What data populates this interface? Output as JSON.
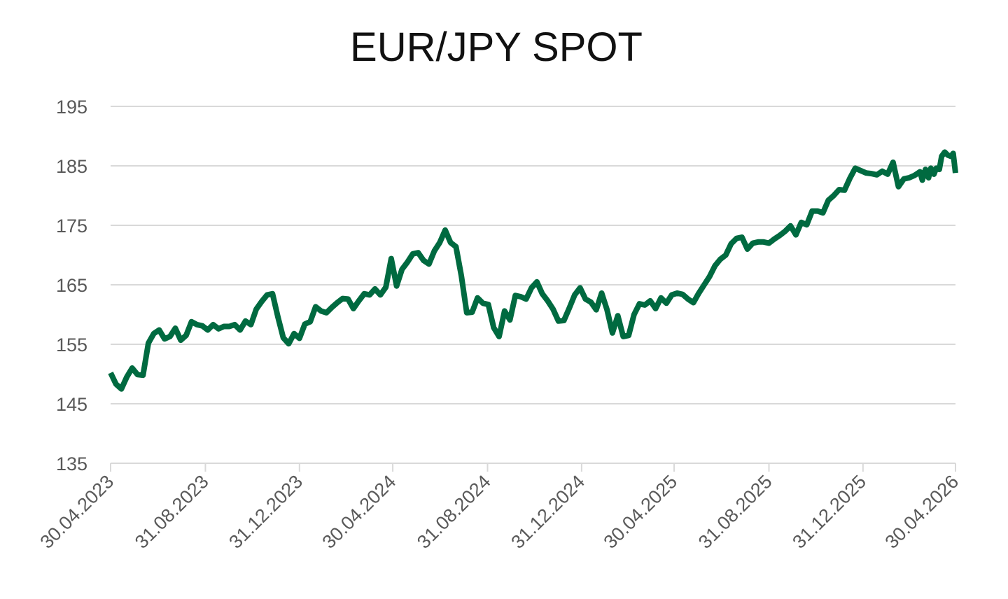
{
  "chart_data": {
    "type": "line",
    "title": "EUR/JPY SPOT",
    "xlabel": "",
    "ylabel": "",
    "ylim": [
      135,
      195
    ],
    "y_ticks": [
      "135",
      "145",
      "155",
      "165",
      "175",
      "185",
      "195"
    ],
    "x_ticks": [
      "30.04.2023",
      "31.08.2023",
      "31.12.2023",
      "30.04.2024",
      "31.08.2024",
      "31.12.2024",
      "30.04.2025",
      "31.08.2025",
      "31.12.2025",
      "30.04.2026"
    ],
    "grid": true,
    "legend": "none",
    "line_color": "#006a40",
    "series": [
      {
        "values": [
          [
            "30.04.2023",
            150.2
          ],
          [
            "07.05.2023",
            148.3
          ],
          [
            "14.05.2023",
            147.5
          ],
          [
            "21.05.2023",
            149.5
          ],
          [
            "28.05.2023",
            151.0
          ],
          [
            "04.06.2023",
            149.9
          ],
          [
            "11.06.2023",
            149.8
          ],
          [
            "18.06.2023",
            155.2
          ],
          [
            "25.06.2023",
            156.8
          ],
          [
            "02.07.2023",
            157.4
          ],
          [
            "09.07.2023",
            155.9
          ],
          [
            "16.07.2023",
            156.3
          ],
          [
            "23.07.2023",
            157.7
          ],
          [
            "30.07.2023",
            155.7
          ],
          [
            "06.08.2023",
            156.5
          ],
          [
            "13.08.2023",
            158.8
          ],
          [
            "20.08.2023",
            158.3
          ],
          [
            "27.08.2023",
            158.1
          ],
          [
            "03.09.2023",
            157.4
          ],
          [
            "10.09.2023",
            158.3
          ],
          [
            "17.09.2023",
            157.6
          ],
          [
            "24.09.2023",
            158.0
          ],
          [
            "01.10.2023",
            158.0
          ],
          [
            "08.10.2023",
            158.3
          ],
          [
            "15.10.2023",
            157.4
          ],
          [
            "22.10.2023",
            158.9
          ],
          [
            "29.10.2023",
            158.3
          ],
          [
            "05.11.2023",
            160.9
          ],
          [
            "12.11.2023",
            162.2
          ],
          [
            "19.11.2023",
            163.3
          ],
          [
            "26.11.2023",
            163.5
          ],
          [
            "03.12.2023",
            159.6
          ],
          [
            "10.12.2023",
            156.1
          ],
          [
            "17.12.2023",
            155.1
          ],
          [
            "24.12.2023",
            156.8
          ],
          [
            "31.12.2023",
            156.0
          ],
          [
            "07.01.2024",
            158.4
          ],
          [
            "14.01.2024",
            158.8
          ],
          [
            "21.01.2024",
            161.3
          ],
          [
            "28.01.2024",
            160.6
          ],
          [
            "04.02.2024",
            160.3
          ],
          [
            "11.02.2024",
            161.2
          ],
          [
            "18.02.2024",
            162.0
          ],
          [
            "25.02.2024",
            162.7
          ],
          [
            "03.03.2024",
            162.6
          ],
          [
            "10.03.2024",
            161.0
          ],
          [
            "17.03.2024",
            162.3
          ],
          [
            "24.03.2024",
            163.5
          ],
          [
            "31.03.2024",
            163.3
          ],
          [
            "07.04.2024",
            164.3
          ],
          [
            "14.04.2024",
            163.3
          ],
          [
            "21.04.2024",
            164.6
          ],
          [
            "28.04.2024",
            169.4
          ],
          [
            "05.05.2024",
            164.8
          ],
          [
            "12.05.2024",
            167.6
          ],
          [
            "19.05.2024",
            168.8
          ],
          [
            "26.05.2024",
            170.2
          ],
          [
            "02.06.2024",
            170.4
          ],
          [
            "09.06.2024",
            169.1
          ],
          [
            "16.06.2024",
            168.5
          ],
          [
            "23.06.2024",
            170.7
          ],
          [
            "30.06.2024",
            172.1
          ],
          [
            "07.07.2024",
            174.2
          ],
          [
            "14.07.2024",
            172.1
          ],
          [
            "21.07.2024",
            171.4
          ],
          [
            "28.07.2024",
            166.5
          ],
          [
            "04.08.2024",
            160.3
          ],
          [
            "11.08.2024",
            160.4
          ],
          [
            "18.08.2024",
            162.8
          ],
          [
            "25.08.2024",
            161.9
          ],
          [
            "01.09.2024",
            161.7
          ],
          [
            "08.09.2024",
            157.8
          ],
          [
            "15.09.2024",
            156.3
          ],
          [
            "22.09.2024",
            160.6
          ],
          [
            "29.09.2024",
            159.1
          ],
          [
            "06.10.2024",
            163.2
          ],
          [
            "13.10.2024",
            163.0
          ],
          [
            "20.10.2024",
            162.6
          ],
          [
            "27.10.2024",
            164.5
          ],
          [
            "03.11.2024",
            165.5
          ],
          [
            "10.11.2024",
            163.5
          ],
          [
            "17.11.2024",
            162.3
          ],
          [
            "24.11.2024",
            160.9
          ],
          [
            "01.12.2024",
            158.9
          ],
          [
            "08.12.2024",
            159.0
          ],
          [
            "15.12.2024",
            161.1
          ],
          [
            "22.12.2024",
            163.3
          ],
          [
            "29.12.2024",
            164.5
          ],
          [
            "05.01.2025",
            162.6
          ],
          [
            "12.01.2025",
            162.1
          ],
          [
            "19.01.2025",
            160.8
          ],
          [
            "26.01.2025",
            163.6
          ],
          [
            "02.02.2025",
            160.8
          ],
          [
            "09.02.2025",
            156.9
          ],
          [
            "16.02.2025",
            159.8
          ],
          [
            "23.02.2025",
            156.3
          ],
          [
            "02.03.2025",
            156.5
          ],
          [
            "09.03.2025",
            160.0
          ],
          [
            "16.03.2025",
            161.8
          ],
          [
            "23.03.2025",
            161.6
          ],
          [
            "30.03.2025",
            162.3
          ],
          [
            "06.04.2025",
            161.0
          ],
          [
            "13.04.2025",
            162.8
          ],
          [
            "20.04.2025",
            161.9
          ],
          [
            "27.04.2025",
            163.3
          ],
          [
            "04.05.2025",
            163.6
          ],
          [
            "11.05.2025",
            163.4
          ],
          [
            "18.05.2025",
            162.6
          ],
          [
            "25.05.2025",
            162.0
          ],
          [
            "01.06.2025",
            163.6
          ],
          [
            "08.06.2025",
            165.0
          ],
          [
            "15.06.2025",
            166.4
          ],
          [
            "22.06.2025",
            168.2
          ],
          [
            "29.06.2025",
            169.3
          ],
          [
            "06.07.2025",
            170.0
          ],
          [
            "13.07.2025",
            171.9
          ],
          [
            "20.07.2025",
            172.8
          ],
          [
            "27.07.2025",
            173.0
          ],
          [
            "03.08.2025",
            171.0
          ],
          [
            "10.08.2025",
            172.0
          ],
          [
            "17.08.2025",
            172.2
          ],
          [
            "24.08.2025",
            172.2
          ],
          [
            "31.08.2025",
            172.0
          ],
          [
            "07.09.2025",
            172.7
          ],
          [
            "14.09.2025",
            173.3
          ],
          [
            "21.09.2025",
            174.0
          ],
          [
            "28.09.2025",
            174.9
          ],
          [
            "05.10.2025",
            173.4
          ],
          [
            "12.10.2025",
            175.5
          ],
          [
            "19.10.2025",
            175.1
          ],
          [
            "26.10.2025",
            177.4
          ],
          [
            "02.11.2025",
            177.4
          ],
          [
            "09.11.2025",
            177.1
          ],
          [
            "16.11.2025",
            179.2
          ],
          [
            "23.11.2025",
            180.0
          ],
          [
            "30.11.2025",
            181.0
          ],
          [
            "07.12.2025",
            180.9
          ],
          [
            "14.12.2025",
            182.9
          ],
          [
            "21.12.2025",
            184.6
          ],
          [
            "28.12.2025",
            184.2
          ],
          [
            "04.01.2026",
            183.8
          ],
          [
            "11.01.2026",
            183.7
          ],
          [
            "18.01.2026",
            183.5
          ],
          [
            "25.01.2026",
            184.1
          ],
          [
            "01.02.2026",
            183.6
          ],
          [
            "08.02.2026",
            185.6
          ],
          [
            "15.02.2026",
            181.5
          ],
          [
            "22.02.2026",
            182.8
          ],
          [
            "01.03.2026",
            183.0
          ],
          [
            "08.03.2026",
            183.4
          ],
          [
            "15.03.2026",
            184.0
          ],
          [
            "18.03.2026",
            182.6
          ],
          [
            "22.03.2026",
            184.4
          ],
          [
            "26.03.2026",
            183.0
          ],
          [
            "29.03.2026",
            184.6
          ],
          [
            "02.04.2026",
            183.6
          ],
          [
            "05.04.2026",
            184.6
          ],
          [
            "09.04.2026",
            184.4
          ],
          [
            "12.04.2026",
            186.6
          ],
          [
            "16.04.2026",
            187.3
          ],
          [
            "20.04.2026",
            186.8
          ],
          [
            "24.04.2026",
            186.6
          ],
          [
            "27.04.2026",
            187.1
          ],
          [
            "30.04.2026",
            183.8
          ]
        ]
      }
    ]
  }
}
